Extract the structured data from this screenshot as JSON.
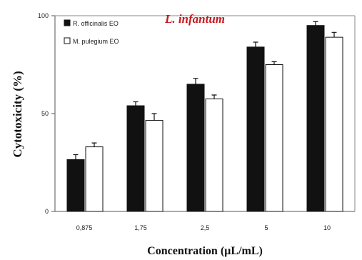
{
  "chart_data": {
    "type": "bar",
    "title": "L. infantum",
    "title_color": "#c8161d",
    "xlabel": "Concentration (µL/mL)",
    "ylabel": "Cytotoxicity (%)",
    "categories": [
      "0,875",
      "1,75",
      "2,5",
      "5",
      "10"
    ],
    "y_ticks": [
      "0",
      "50",
      "100"
    ],
    "ylim": [
      0,
      100
    ],
    "legend_position": "top-left",
    "series": [
      {
        "name": "R. officinalis EO",
        "color": "#111111",
        "values": [
          26.5,
          54,
          65,
          84,
          95
        ],
        "errors": [
          2.5,
          2,
          3,
          2.5,
          2
        ]
      },
      {
        "name": "M. pulegium EO",
        "color": "#ffffff",
        "values": [
          33,
          46.5,
          57.5,
          75,
          89
        ],
        "errors": [
          2,
          3.5,
          2,
          1.5,
          2.5
        ]
      }
    ]
  }
}
